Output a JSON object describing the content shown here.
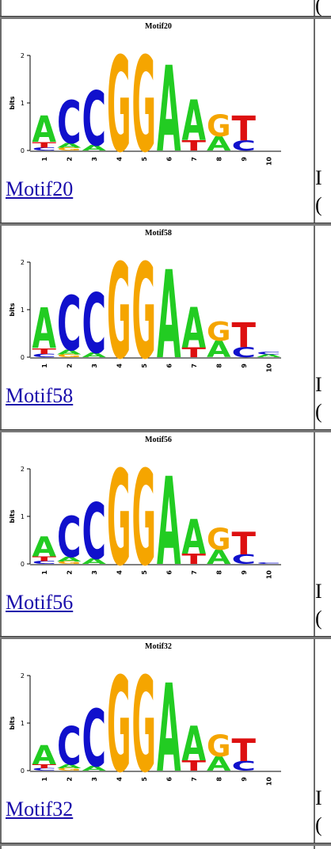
{
  "rows": [
    {
      "title": "Motif20",
      "link": "Motif20",
      "edge": [
        "I",
        "("
      ],
      "columns": [
        {
          "pos": "1",
          "letters": [
            [
              "C",
              0.06
            ],
            [
              "T",
              0.12
            ],
            [
              "A",
              0.55
            ]
          ]
        },
        {
          "pos": "2",
          "letters": [
            [
              "G",
              0.06
            ],
            [
              "A",
              0.1
            ],
            [
              "C",
              0.9
            ]
          ]
        },
        {
          "pos": "3",
          "letters": [
            [
              "A",
              0.12
            ],
            [
              "C",
              1.15
            ]
          ]
        },
        {
          "pos": "4",
          "letters": [
            [
              "G",
              2.0
            ]
          ]
        },
        {
          "pos": "5",
          "letters": [
            [
              "G",
              2.0
            ]
          ]
        },
        {
          "pos": "6",
          "letters": [
            [
              "A",
              1.8
            ]
          ]
        },
        {
          "pos": "7",
          "letters": [
            [
              "T",
              0.22
            ],
            [
              "A",
              0.85
            ]
          ]
        },
        {
          "pos": "8",
          "letters": [
            [
              "A",
              0.3
            ],
            [
              "G",
              0.45
            ]
          ]
        },
        {
          "pos": "9",
          "letters": [
            [
              "C",
              0.22
            ],
            [
              "T",
              0.52
            ]
          ]
        },
        {
          "pos": "10",
          "letters": []
        }
      ]
    },
    {
      "title": "Motif58",
      "link": "Motif58",
      "edge": [
        "I",
        "("
      ],
      "columns": [
        {
          "pos": "1",
          "letters": [
            [
              "C",
              0.07
            ],
            [
              "T",
              0.12
            ],
            [
              "A",
              0.85
            ]
          ]
        },
        {
          "pos": "2",
          "letters": [
            [
              "G",
              0.06
            ],
            [
              "A",
              0.1
            ],
            [
              "C",
              1.15
            ]
          ]
        },
        {
          "pos": "3",
          "letters": [
            [
              "A",
              0.1
            ],
            [
              "C",
              1.25
            ]
          ]
        },
        {
          "pos": "4",
          "letters": [
            [
              "G",
              2.0
            ]
          ]
        },
        {
          "pos": "5",
          "letters": [
            [
              "G",
              2.0
            ]
          ]
        },
        {
          "pos": "6",
          "letters": [
            [
              "A",
              1.85
            ]
          ]
        },
        {
          "pos": "7",
          "letters": [
            [
              "T",
              0.2
            ],
            [
              "A",
              0.85
            ]
          ]
        },
        {
          "pos": "8",
          "letters": [
            [
              "A",
              0.35
            ],
            [
              "G",
              0.4
            ]
          ]
        },
        {
          "pos": "9",
          "letters": [
            [
              "C",
              0.22
            ],
            [
              "T",
              0.52
            ]
          ]
        },
        {
          "pos": "10",
          "letters": [
            [
              "A",
              0.06
            ],
            [
              "C",
              0.05
            ]
          ]
        }
      ]
    },
    {
      "title": "Motif56",
      "link": "Motif56",
      "edge": [
        "I",
        "("
      ],
      "columns": [
        {
          "pos": "1",
          "letters": [
            [
              "C",
              0.06
            ],
            [
              "T",
              0.1
            ],
            [
              "A",
              0.42
            ]
          ]
        },
        {
          "pos": "2",
          "letters": [
            [
              "G",
              0.05
            ],
            [
              "A",
              0.1
            ],
            [
              "C",
              0.85
            ]
          ]
        },
        {
          "pos": "3",
          "letters": [
            [
              "A",
              0.12
            ],
            [
              "C",
              1.18
            ]
          ]
        },
        {
          "pos": "4",
          "letters": [
            [
              "G",
              2.0
            ]
          ]
        },
        {
          "pos": "5",
          "letters": [
            [
              "G",
              2.0
            ]
          ]
        },
        {
          "pos": "6",
          "letters": [
            [
              "A",
              1.85
            ]
          ]
        },
        {
          "pos": "7",
          "letters": [
            [
              "T",
              0.22
            ],
            [
              "A",
              0.72
            ]
          ]
        },
        {
          "pos": "8",
          "letters": [
            [
              "A",
              0.3
            ],
            [
              "G",
              0.45
            ]
          ]
        },
        {
          "pos": "9",
          "letters": [
            [
              "C",
              0.2
            ],
            [
              "T",
              0.48
            ]
          ]
        },
        {
          "pos": "10",
          "letters": [
            [
              "C",
              0.03
            ]
          ]
        }
      ]
    },
    {
      "title": "Motif32",
      "link": "Motif32",
      "edge": [
        "I",
        "("
      ],
      "columns": [
        {
          "pos": "1",
          "letters": [
            [
              "C",
              0.05
            ],
            [
              "T",
              0.08
            ],
            [
              "A",
              0.4
            ]
          ]
        },
        {
          "pos": "2",
          "letters": [
            [
              "G",
              0.05
            ],
            [
              "A",
              0.08
            ],
            [
              "C",
              0.8
            ]
          ]
        },
        {
          "pos": "3",
          "letters": [
            [
              "A",
              0.1
            ],
            [
              "C",
              1.2
            ]
          ]
        },
        {
          "pos": "4",
          "letters": [
            [
              "G",
              2.0
            ]
          ]
        },
        {
          "pos": "5",
          "letters": [
            [
              "G",
              2.0
            ]
          ]
        },
        {
          "pos": "6",
          "letters": [
            [
              "A",
              1.85
            ]
          ]
        },
        {
          "pos": "7",
          "letters": [
            [
              "T",
              0.22
            ],
            [
              "A",
              0.72
            ]
          ]
        },
        {
          "pos": "8",
          "letters": [
            [
              "A",
              0.3
            ],
            [
              "G",
              0.45
            ]
          ]
        },
        {
          "pos": "9",
          "letters": [
            [
              "C",
              0.2
            ],
            [
              "T",
              0.48
            ]
          ]
        },
        {
          "pos": "10",
          "letters": []
        }
      ]
    }
  ],
  "axis": {
    "ylabel": "bits",
    "ticks": [
      "0",
      "1",
      "2"
    ],
    "ymax": 2
  },
  "colors": {
    "A": "#22cc22",
    "C": "#1010cc",
    "G": "#f5a500",
    "T": "#dd1010"
  },
  "top_edge": "("
}
